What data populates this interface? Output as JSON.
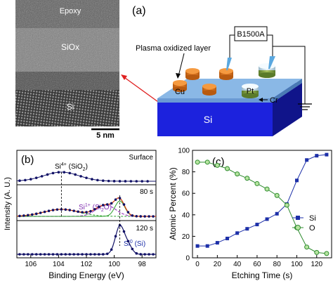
{
  "panel_a": {
    "label": "(a)",
    "tem": {
      "layers": [
        "Epoxy",
        "SiOx",
        "Si"
      ],
      "scale_bar": "5 nm"
    },
    "device": {
      "instrument": "B1500A",
      "oxide_label": "Plasma oxidized layer",
      "electrodes": [
        "Cu",
        "Pt",
        "Cr"
      ],
      "substrate": "Si"
    }
  },
  "panel_b": {
    "label": "(b)",
    "chart_data": {
      "type": "line",
      "xlabel": "Binding Energy (eV)",
      "ylabel": "Intensity (A. U.)",
      "x_reversed": true,
      "xlim": [
        107,
        97
      ],
      "xticks": [
        106,
        104,
        102,
        100,
        98
      ],
      "traces": [
        {
          "label": "Surface",
          "peaks": [
            {
              "name": "Si4+ (SiO2)",
              "position": 103.8
            }
          ]
        },
        {
          "label": "80 s",
          "peaks": [
            {
              "name": "Si1+ (Si2O)",
              "position": 100.6
            },
            {
              "name": "Si0",
              "position": 99.6
            }
          ]
        },
        {
          "label": "120 s",
          "peaks": [
            {
              "name": "Si0 (Si)",
              "position": 99.6
            }
          ]
        }
      ],
      "annotations": [
        "Si4+ (SiO2)",
        "Si1+ (Si2O)",
        "Si0 (Si)"
      ],
      "colors": {
        "data": "#111166",
        "fit_sio2": "#2aa02a",
        "fit_si2o": "#a040c0",
        "envelope": "#d04010"
      }
    }
  },
  "panel_c": {
    "label": "(c)",
    "chart_data": {
      "type": "line",
      "xlabel": "Etching Time (s)",
      "ylabel": "Atomic Percent (%)",
      "xlim": [
        -5,
        135
      ],
      "ylim": [
        0,
        100
      ],
      "xticks": [
        0,
        20,
        40,
        60,
        80,
        100,
        120
      ],
      "yticks": [
        0,
        20,
        40,
        60,
        80,
        100
      ],
      "legend_position": "right",
      "series": [
        {
          "name": "Si",
          "color": "#1c2fa8",
          "marker": "square",
          "x": [
            0,
            10,
            20,
            30,
            40,
            50,
            60,
            70,
            80,
            90,
            100,
            110,
            120,
            130
          ],
          "y": [
            11,
            11,
            14,
            18,
            23,
            27,
            31,
            36,
            41,
            50,
            72,
            91,
            95,
            96
          ]
        },
        {
          "name": "O",
          "color": "#2e8b2e",
          "marker": "circle",
          "x": [
            0,
            10,
            20,
            30,
            40,
            50,
            60,
            70,
            80,
            90,
            100,
            110,
            120,
            130
          ],
          "y": [
            89,
            89,
            86,
            83,
            78,
            74,
            69,
            64,
            58,
            49,
            28,
            10,
            5,
            4
          ]
        }
      ]
    }
  }
}
